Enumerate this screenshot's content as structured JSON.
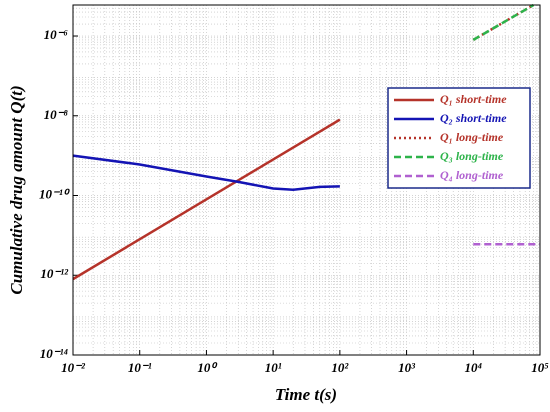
{
  "chart_data": {
    "type": "line",
    "xlabel": "Time t(s)",
    "ylabel": "Cumulative drug amount Q(t)",
    "log_x": true,
    "log_y": true,
    "grid": true,
    "legend": "upper right",
    "xlim": [
      0.01,
      100000
    ],
    "ylim": [
      1e-14,
      6e-06
    ],
    "xticks": [
      {
        "value": 0.01,
        "label": "10⁻²"
      },
      {
        "value": 0.1,
        "label": "10⁻¹"
      },
      {
        "value": 1,
        "label": "10⁰"
      },
      {
        "value": 10,
        "label": "10¹"
      },
      {
        "value": 100,
        "label": "10²"
      },
      {
        "value": 1000,
        "label": "10³"
      },
      {
        "value": 10000,
        "label": "10⁴"
      },
      {
        "value": 100000,
        "label": "10⁵"
      }
    ],
    "yticks": [
      {
        "value": 1e-14,
        "label": "10⁻¹⁴"
      },
      {
        "value": 1e-12,
        "label": "10⁻¹²"
      },
      {
        "value": 1e-10,
        "label": "10⁻¹⁰"
      },
      {
        "value": 1e-08,
        "label": "10⁻⁸"
      },
      {
        "value": 1e-06,
        "label": "10⁻⁶"
      }
    ],
    "series": [
      {
        "name": "Q₁ short-time",
        "color": "#b5332a",
        "style": "solid",
        "x": [
          0.01,
          100
        ],
        "values": [
          8e-13,
          8e-09
        ]
      },
      {
        "name": "Q₂ short-time",
        "color": "#1414b4",
        "style": "solid",
        "x": [
          0.01,
          0.1,
          1,
          3,
          10,
          20,
          50,
          100
        ],
        "values": [
          1e-09,
          6e-10,
          3e-10,
          2.2e-10,
          1.5e-10,
          1.4e-10,
          1.65e-10,
          1.7e-10
        ]
      },
      {
        "name": "Q₁ long-time",
        "color": "#b5332a",
        "style": "dotted",
        "x": [
          10000,
          80000
        ],
        "values": [
          8e-07,
          6e-06
        ]
      },
      {
        "name": "Q₃ long-time",
        "color": "#2db34a",
        "style": "dashed",
        "x": [
          10000,
          80000
        ],
        "values": [
          8e-07,
          6e-06
        ]
      },
      {
        "name": "Q₄ long-time",
        "color": "#b060d0",
        "style": "dashed",
        "x": [
          10000,
          100000
        ],
        "values": [
          6e-12,
          6e-12
        ]
      }
    ]
  }
}
